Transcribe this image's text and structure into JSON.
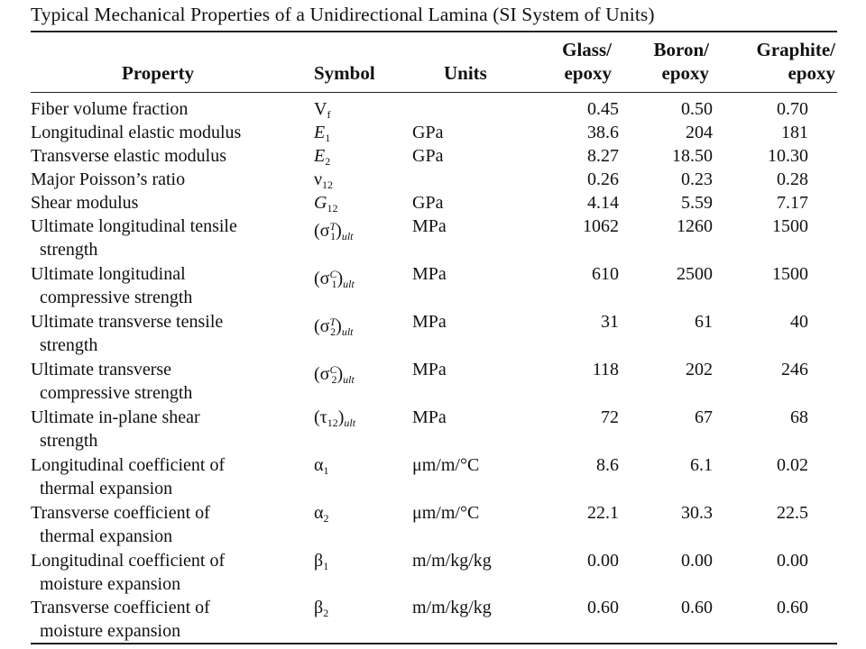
{
  "title": "Typical Mechanical Properties of a Unidirectional Lamina (SI System of Units)",
  "headers": {
    "property": "Property",
    "symbol": "Symbol",
    "units": "Units",
    "glass_line1": "Glass/",
    "glass_line2": "epoxy",
    "boron_line1": "Boron/",
    "boron_line2": "epoxy",
    "graphite_line1": "Graphite/",
    "graphite_line2": "epoxy"
  },
  "rows": [
    {
      "property": [
        "Fiber volume fraction"
      ],
      "symbol": {
        "base": "V",
        "sub": "f",
        "sup": "",
        "wrap": ""
      },
      "units": "",
      "glass": "0.45",
      "boron": "0.50",
      "graphite": "0.70"
    },
    {
      "property": [
        "Longitudinal elastic modulus"
      ],
      "symbol": {
        "base": "E",
        "sub": "1",
        "sup": "",
        "wrap": ""
      },
      "units": "GPa",
      "glass": "38.6",
      "boron": "204",
      "graphite": "181"
    },
    {
      "property": [
        "Transverse elastic modulus"
      ],
      "symbol": {
        "base": "E",
        "sub": "2",
        "sup": "",
        "wrap": ""
      },
      "units": "GPa",
      "glass": "8.27",
      "boron": "18.50",
      "graphite": "10.30"
    },
    {
      "property": [
        "Major Poisson’s ratio"
      ],
      "symbol": {
        "base": "ν",
        "sub": "12",
        "sup": "",
        "wrap": ""
      },
      "units": "",
      "glass": "0.26",
      "boron": "0.23",
      "graphite": "0.28"
    },
    {
      "property": [
        "Shear modulus"
      ],
      "symbol": {
        "base": "G",
        "sub": "12",
        "sup": "",
        "wrap": ""
      },
      "units": "GPa",
      "glass": "4.14",
      "boron": "5.59",
      "graphite": "7.17"
    },
    {
      "property": [
        "Ultimate longitudinal tensile",
        "strength"
      ],
      "symbol": {
        "base": "σ",
        "sub": "1",
        "sup": "T",
        "wrap": "ult"
      },
      "units": "MPa",
      "glass": "1062",
      "boron": "1260",
      "graphite": "1500"
    },
    {
      "property": [
        "Ultimate longitudinal",
        "compressive strength"
      ],
      "symbol": {
        "base": "σ",
        "sub": "1",
        "sup": "C",
        "wrap": "ult"
      },
      "units": "MPa",
      "glass": "610",
      "boron": "2500",
      "graphite": "1500"
    },
    {
      "property": [
        "Ultimate transverse tensile",
        "strength"
      ],
      "symbol": {
        "base": "σ",
        "sub": "2",
        "sup": "T",
        "wrap": "ult"
      },
      "units": "MPa",
      "glass": "31",
      "boron": "61",
      "graphite": "40"
    },
    {
      "property": [
        "Ultimate transverse",
        "compressive strength"
      ],
      "symbol": {
        "base": "σ",
        "sub": "2",
        "sup": "C",
        "wrap": "ult"
      },
      "units": "MPa",
      "glass": "118",
      "boron": "202",
      "graphite": "246"
    },
    {
      "property": [
        "Ultimate in-plane shear",
        "strength"
      ],
      "symbol": {
        "base": "τ",
        "sub": "12",
        "sup": "",
        "wrap": "ult"
      },
      "units": "MPa",
      "glass": "72",
      "boron": "67",
      "graphite": "68"
    },
    {
      "property": [
        "Longitudinal coefficient of",
        "thermal expansion"
      ],
      "symbol": {
        "base": "α",
        "sub": "1",
        "sup": "",
        "wrap": ""
      },
      "units": "μm/m/°C",
      "glass": "8.6",
      "boron": "6.1",
      "graphite": "0.02"
    },
    {
      "property": [
        "Transverse coefficient of",
        "thermal expansion"
      ],
      "symbol": {
        "base": "α",
        "sub": "2",
        "sup": "",
        "wrap": ""
      },
      "units": "μm/m/°C",
      "glass": "22.1",
      "boron": "30.3",
      "graphite": "22.5"
    },
    {
      "property": [
        "Longitudinal coefficient of",
        "moisture expansion"
      ],
      "symbol": {
        "base": "β",
        "sub": "1",
        "sup": "",
        "wrap": ""
      },
      "units": "m/m/kg/kg",
      "glass": "0.00",
      "boron": "0.00",
      "graphite": "0.00"
    },
    {
      "property": [
        "Transverse coefficient of",
        "moisture expansion"
      ],
      "symbol": {
        "base": "β",
        "sub": "2",
        "sup": "",
        "wrap": ""
      },
      "units": "m/m/kg/kg",
      "glass": "0.60",
      "boron": "0.60",
      "graphite": "0.60"
    }
  ]
}
